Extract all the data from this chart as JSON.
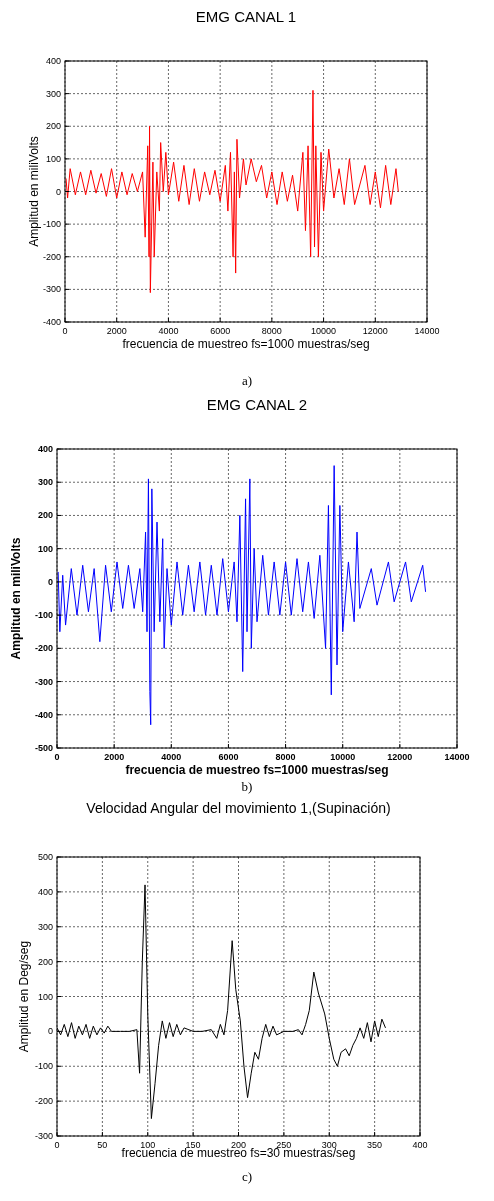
{
  "chart_data": [
    {
      "type": "line",
      "title": "EMG CANAL 1",
      "xlabel": "frecuencia de muestreo fs=1000 muestras/seg",
      "ylabel": "Amplitud en miliVolts",
      "annotations": [
        "a)"
      ],
      "xlim": [
        0,
        14000
      ],
      "ylim": [
        -400,
        400
      ],
      "xticks": [
        0,
        2000,
        4000,
        6000,
        8000,
        10000,
        12000,
        14000
      ],
      "yticks": [
        -400,
        -300,
        -200,
        -100,
        0,
        100,
        200,
        300,
        400
      ],
      "grid": true,
      "series": [
        {
          "color": "#ff0000",
          "x": [
            40,
            100,
            200,
            400,
            600,
            800,
            1000,
            1200,
            1400,
            1600,
            1800,
            2000,
            2200,
            2400,
            2600,
            2800,
            3000,
            3100,
            3200,
            3250,
            3270,
            3300,
            3400,
            3450,
            3550,
            3650,
            3700,
            3800,
            3900,
            4000,
            4200,
            4400,
            4600,
            4800,
            5000,
            5200,
            5400,
            5600,
            5800,
            6000,
            6200,
            6300,
            6400,
            6500,
            6550,
            6600,
            6650,
            6750,
            6900,
            7000,
            7200,
            7400,
            7600,
            7800,
            8000,
            8200,
            8400,
            8600,
            8800,
            9000,
            9200,
            9300,
            9400,
            9500,
            9590,
            9650,
            9700,
            9800,
            9900,
            10000,
            10200,
            10400,
            10600,
            10800,
            11000,
            11200,
            11600,
            11800,
            12000,
            12200,
            12400,
            12600,
            12800,
            12890
          ],
          "values": [
            40,
            -20,
            70,
            -10,
            60,
            -10,
            65,
            -5,
            55,
            -15,
            70,
            -20,
            60,
            -10,
            55,
            0,
            60,
            -140,
            140,
            -200,
            200,
            -310,
            90,
            -200,
            60,
            -60,
            150,
            0,
            120,
            -10,
            90,
            -30,
            80,
            -40,
            70,
            -30,
            60,
            -10,
            65,
            -30,
            80,
            -60,
            120,
            -200,
            60,
            -250,
            160,
            -20,
            100,
            20,
            100,
            30,
            80,
            -20,
            60,
            -40,
            60,
            -30,
            50,
            -60,
            120,
            -120,
            140,
            -200,
            310,
            -170,
            140,
            -200,
            120,
            -60,
            130,
            -20,
            70,
            -40,
            100,
            -40,
            80,
            -40,
            60,
            -50,
            80,
            -40,
            70,
            0
          ]
        }
      ]
    },
    {
      "type": "line",
      "title": "EMG CANAL 2",
      "xlabel": "frecuencia de muestreo fs=1000 muestras/seg",
      "ylabel": "Amplitud en miliVolts",
      "annotations": [
        "b)"
      ],
      "xlim": [
        0,
        14000
      ],
      "ylim": [
        -500,
        400
      ],
      "xticks": [
        0,
        2000,
        4000,
        6000,
        8000,
        10000,
        12000,
        14000
      ],
      "yticks": [
        -500,
        -400,
        -300,
        -200,
        -100,
        0,
        100,
        200,
        300,
        400
      ],
      "grid": true,
      "series": [
        {
          "color": "#0000ff",
          "x": [
            40,
            100,
            200,
            300,
            500,
            700,
            900,
            1100,
            1300,
            1500,
            1700,
            1900,
            2100,
            2300,
            2500,
            2700,
            2900,
            3000,
            3100,
            3150,
            3200,
            3250,
            3280,
            3320,
            3400,
            3500,
            3600,
            3700,
            3750,
            3850,
            4000,
            4200,
            4400,
            4600,
            4800,
            5000,
            5200,
            5400,
            5600,
            5800,
            6000,
            6200,
            6300,
            6400,
            6500,
            6600,
            6650,
            6750,
            6800,
            6900,
            7000,
            7200,
            7400,
            7600,
            7800,
            8000,
            8200,
            8400,
            8600,
            8800,
            9000,
            9200,
            9400,
            9500,
            9600,
            9700,
            9800,
            9900,
            10000,
            10200,
            10400,
            10500,
            10600,
            11000,
            11200,
            11600,
            11800,
            12200,
            12400,
            12800,
            12900
          ],
          "values": [
            30,
            -150,
            20,
            -130,
            40,
            -100,
            50,
            -90,
            40,
            -180,
            50,
            -90,
            60,
            -80,
            50,
            -80,
            40,
            -90,
            150,
            -150,
            310,
            -330,
            -430,
            280,
            -150,
            180,
            -120,
            130,
            -200,
            40,
            -130,
            60,
            -100,
            50,
            -90,
            60,
            -100,
            50,
            -100,
            70,
            -90,
            60,
            -120,
            200,
            -270,
            250,
            -150,
            310,
            -200,
            100,
            -120,
            80,
            -100,
            60,
            -100,
            60,
            -100,
            70,
            -90,
            60,
            -110,
            80,
            -200,
            230,
            -340,
            350,
            -250,
            230,
            -150,
            60,
            -120,
            150,
            -80,
            40,
            -70,
            60,
            -60,
            60,
            -60,
            50,
            -30
          ]
        }
      ]
    },
    {
      "type": "line",
      "title": "Velocidad Angular del movimiento 1,(Supinación)",
      "xlabel": "frecuencia de muestreo fs=30 muestras/seg",
      "ylabel": "Amplitud en Deg/seg",
      "annotations": [
        "c)"
      ],
      "xlim": [
        0,
        400
      ],
      "ylim": [
        -300,
        500
      ],
      "xticks": [
        0,
        50,
        100,
        150,
        200,
        250,
        300,
        350,
        400
      ],
      "yticks": [
        -300,
        -200,
        -100,
        0,
        100,
        200,
        300,
        400,
        500
      ],
      "grid": true,
      "series": [
        {
          "color": "#000000",
          "x": [
            0,
            4,
            8,
            12,
            16,
            20,
            24,
            28,
            32,
            36,
            40,
            44,
            48,
            52,
            56,
            60,
            70,
            80,
            88,
            91,
            94,
            97,
            100,
            104,
            108,
            112,
            116,
            120,
            124,
            128,
            132,
            136,
            140,
            150,
            160,
            170,
            176,
            180,
            184,
            188,
            193,
            197,
            202,
            206,
            210,
            214,
            218,
            222,
            226,
            230,
            234,
            238,
            242,
            250,
            260,
            266,
            270,
            274,
            278,
            283,
            288,
            295,
            300,
            305,
            309,
            313,
            318,
            322,
            326,
            330,
            334,
            338,
            342,
            346,
            350,
            354,
            358,
            362
          ],
          "values": [
            10,
            -10,
            20,
            -15,
            25,
            -20,
            15,
            -10,
            20,
            -20,
            15,
            -10,
            10,
            -5,
            15,
            0,
            0,
            0,
            5,
            -120,
            200,
            420,
            50,
            -250,
            -150,
            -40,
            30,
            -20,
            25,
            -15,
            20,
            -10,
            10,
            0,
            0,
            5,
            -20,
            20,
            -10,
            60,
            260,
            120,
            30,
            -100,
            -190,
            -120,
            -60,
            -80,
            -20,
            20,
            -15,
            15,
            -10,
            0,
            0,
            5,
            -10,
            20,
            60,
            170,
            110,
            50,
            -20,
            -80,
            -100,
            -60,
            -50,
            -70,
            -40,
            -20,
            10,
            -20,
            25,
            -30,
            30,
            -15,
            35,
            10
          ]
        }
      ]
    }
  ]
}
